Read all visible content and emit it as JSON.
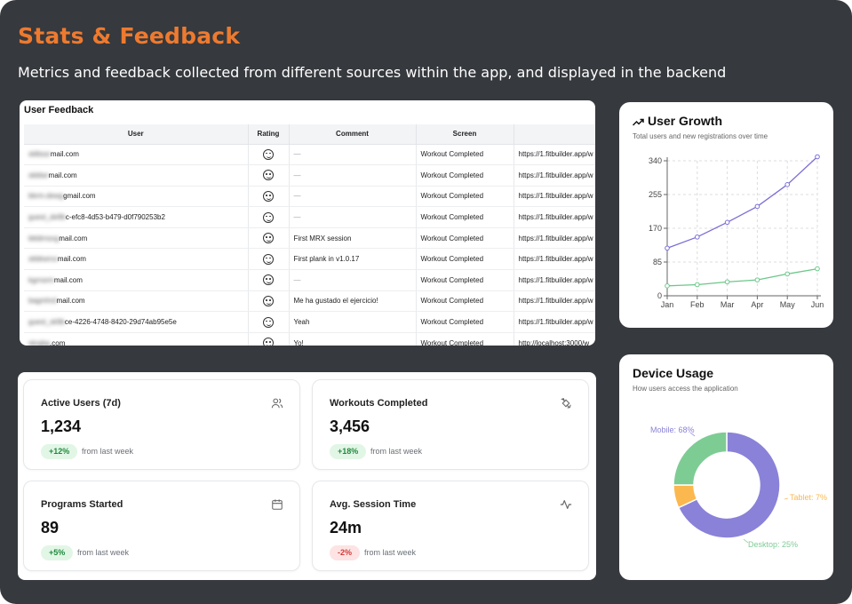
{
  "header": {
    "title": "Stats & Feedback",
    "subtitle": "Metrics and feedback collected from different sources within the app, and displayed in the backend"
  },
  "feedback": {
    "title": "User Feedback",
    "columns": [
      "User",
      "Rating",
      "Comment",
      "Screen",
      ""
    ],
    "rows": [
      {
        "user_hidden": "obfuscated",
        "user_visible": "mail.com",
        "comment": "—",
        "screen": "Workout Completed",
        "url": "https://1.fitbuilder.app/w"
      },
      {
        "user_hidden": "obfuscated",
        "user_visible": "mail.com",
        "comment": "—",
        "screen": "Workout Completed",
        "url": "https://1.fitbuilder.app/w"
      },
      {
        "user_hidden": "obfuscated",
        "user_visible": "gmail.com",
        "comment": "—",
        "screen": "Workout Completed",
        "url": "https://1.fitbuilder.app/w"
      },
      {
        "user_hidden": "obfuscated",
        "user_visible": "c-efc8-4d53-b479-d0f790253b2",
        "comment": "—",
        "screen": "Workout Completed",
        "url": "https://1.fitbuilder.app/w"
      },
      {
        "user_hidden": "obfuscated",
        "user_visible": "mail.com",
        "comment": "First MRX session",
        "screen": "Workout Completed",
        "url": "https://1.fitbuilder.app/w"
      },
      {
        "user_hidden": "obfuscated",
        "user_visible": "mail.com",
        "comment": "First plank in v1.0.17",
        "screen": "Workout Completed",
        "url": "https://1.fitbuilder.app/w"
      },
      {
        "user_hidden": "obfuscated",
        "user_visible": "mail.com",
        "comment": "—",
        "screen": "Workout Completed",
        "url": "https://1.fitbuilder.app/w"
      },
      {
        "user_hidden": "obfuscated",
        "user_visible": "mail.com",
        "comment": "Me ha gustado el ejercicio!",
        "screen": "Workout Completed",
        "url": "https://1.fitbuilder.app/w"
      },
      {
        "user_hidden": "obfuscated",
        "user_visible": "ce-4226-4748-8420-29d74ab95e5e",
        "comment": "Yeah",
        "screen": "Workout Completed",
        "url": "https://1.fitbuilder.app/w"
      },
      {
        "user_hidden": "obfuscated",
        "user_visible": ".com",
        "comment": "Yo!",
        "screen": "Workout Completed",
        "url": "http://localhost:3000/w"
      }
    ]
  },
  "stats": {
    "cards": [
      {
        "label": "Active Users (7d)",
        "value": "1,234",
        "change": "+12%",
        "note": "from last week",
        "icon": "users-icon"
      },
      {
        "label": "Workouts Completed",
        "value": "3,456",
        "change": "+18%",
        "note": "from last week",
        "icon": "dumbbell-icon"
      },
      {
        "label": "Programs Started",
        "value": "89",
        "change": "+5%",
        "note": "from last week",
        "icon": "calendar-icon"
      },
      {
        "label": "Avg. Session Time",
        "value": "24m",
        "change": "-2%",
        "note": "from last week",
        "icon": "activity-icon"
      }
    ]
  },
  "growth": {
    "title": "User Growth",
    "subtitle": "Total users and new registrations over time"
  },
  "device": {
    "title": "Device Usage",
    "subtitle": "How users access the application"
  },
  "colors": {
    "accent": "#ee7a2f",
    "purple": "#7b6fd6",
    "green": "#6cc78a",
    "orange": "#fbb24a",
    "background": "#36393d"
  },
  "chart_data": [
    {
      "type": "line",
      "title": "User Growth",
      "x": [
        "Jan",
        "Feb",
        "Mar",
        "Apr",
        "May",
        "Jun"
      ],
      "yticks": [
        "0",
        "85",
        "170",
        "255",
        "340"
      ],
      "ylim": [
        0,
        340
      ],
      "grid": true,
      "series": [
        {
          "values": [
            120,
            148,
            185,
            225,
            280,
            350
          ],
          "color": "#7b6fd6"
        },
        {
          "values": [
            25,
            28,
            35,
            40,
            55,
            68
          ],
          "color": "#6cc78a"
        }
      ]
    },
    {
      "type": "pie",
      "title": "Device Usage",
      "slices": [
        {
          "label": "Mobile: 68%",
          "value": 68,
          "color": "#8a82d8"
        },
        {
          "label": "Desktop: 25%",
          "value": 25,
          "color": "#7dcc94"
        },
        {
          "label": "Tablet: 7%",
          "value": 7,
          "color": "#fbb84f"
        }
      ]
    }
  ]
}
